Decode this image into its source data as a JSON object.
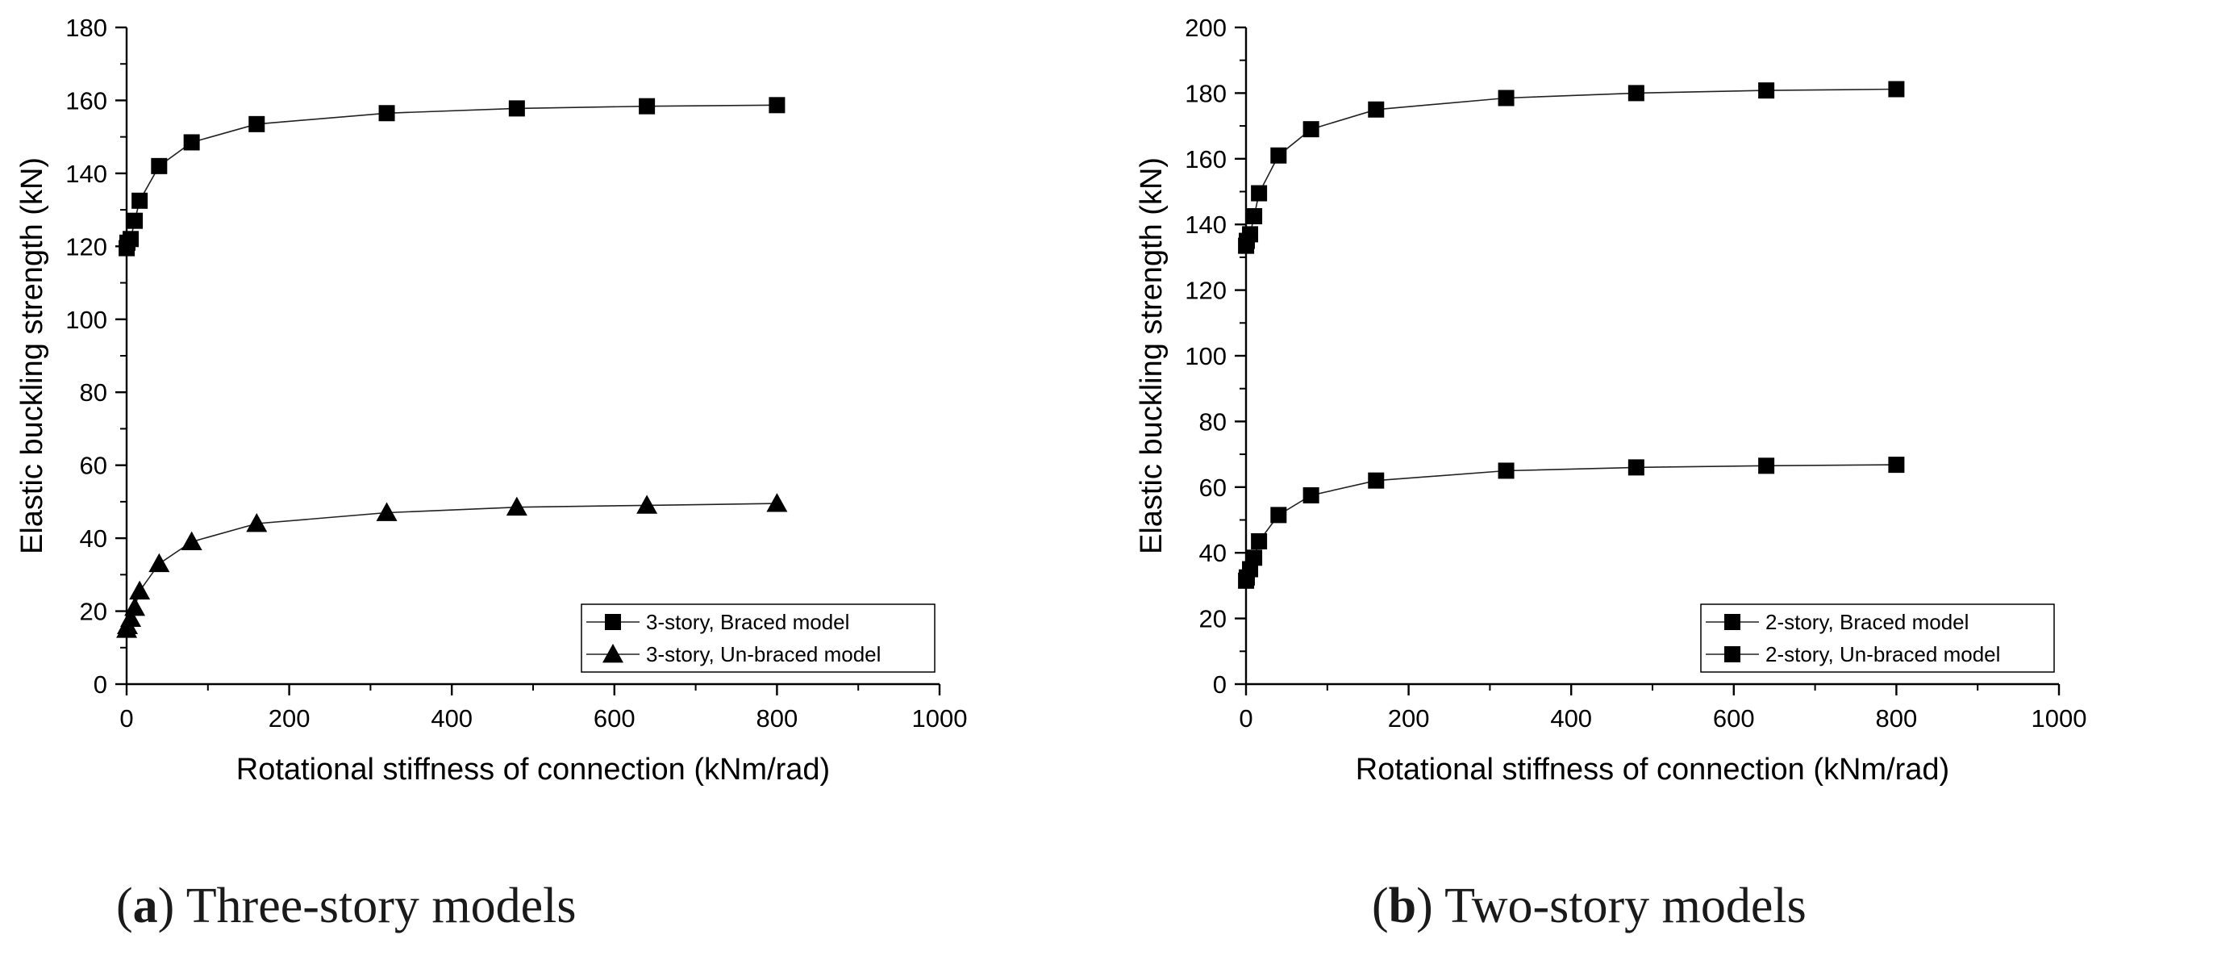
{
  "chart_data": [
    {
      "type": "line",
      "panel_letter": "a",
      "caption_text": "Three-story models",
      "xlabel": "Rotational stiffness of connection (kNm/rad)",
      "ylabel": "Elastic buckling strength (kN)",
      "xlim": [
        0,
        1000
      ],
      "ylim": [
        0,
        180
      ],
      "xticks": [
        0,
        200,
        400,
        600,
        800,
        1000
      ],
      "yticks": [
        0,
        20,
        40,
        60,
        80,
        100,
        120,
        140,
        160,
        180
      ],
      "legend_position": "bottom-right",
      "grid": false,
      "series": [
        {
          "name": "3-story, Braced model",
          "marker": "square",
          "x": [
            0.1,
            1,
            5,
            10,
            16,
            40,
            80,
            160,
            320,
            480,
            640,
            800
          ],
          "y": [
            119.5,
            121,
            122,
            127,
            132.5,
            142,
            148.5,
            153.5,
            156.5,
            157.8,
            158.4,
            158.7
          ]
        },
        {
          "name": "3-story, Un-braced model",
          "marker": "triangle",
          "x": [
            0.1,
            1,
            5,
            10,
            16,
            40,
            80,
            160,
            320,
            480,
            640,
            800
          ],
          "y": [
            15,
            16,
            18,
            21,
            25.5,
            33,
            39,
            44,
            47,
            48.5,
            49,
            49.5
          ]
        }
      ]
    },
    {
      "type": "line",
      "panel_letter": "b",
      "caption_text": "Two-story models",
      "xlabel": "Rotational stiffness of connection (kNm/rad)",
      "ylabel": "Elastic buckling strength (kN)",
      "xlim": [
        0,
        1000
      ],
      "ylim": [
        0,
        200
      ],
      "xticks": [
        0,
        200,
        400,
        600,
        800,
        1000
      ],
      "yticks": [
        0,
        20,
        40,
        60,
        80,
        100,
        120,
        140,
        160,
        180,
        200
      ],
      "legend_position": "bottom-right",
      "grid": false,
      "series": [
        {
          "name": "2-story, Braced model",
          "marker": "square",
          "x": [
            0.1,
            1,
            5,
            10,
            16,
            40,
            80,
            160,
            320,
            480,
            640,
            800
          ],
          "y": [
            133.5,
            135,
            137,
            142.5,
            149.5,
            161,
            169,
            175,
            178.5,
            180,
            180.8,
            181.2
          ]
        },
        {
          "name": "2-story, Un-braced model",
          "marker": "square",
          "x": [
            0.1,
            1,
            5,
            10,
            16,
            40,
            80,
            160,
            320,
            480,
            640,
            800
          ],
          "y": [
            31.5,
            32.5,
            35,
            38.5,
            43.5,
            51.5,
            57.5,
            62,
            65,
            66,
            66.5,
            66.8
          ]
        }
      ]
    }
  ]
}
